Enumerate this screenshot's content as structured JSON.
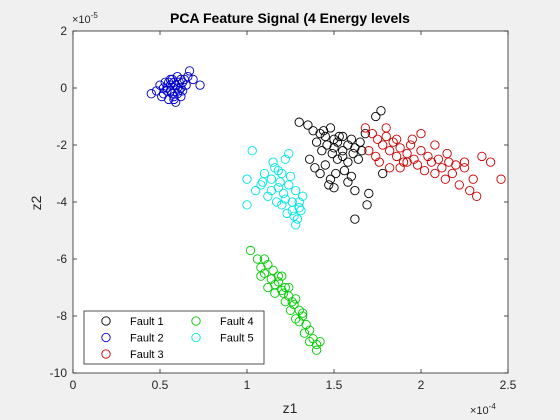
{
  "chart_data": {
    "type": "scatter",
    "title": "PCA Feature Signal (4 Energy levels",
    "xlabel": "z1",
    "ylabel": "z2",
    "x_multiplier": "×10",
    "x_exponent": "-4",
    "y_multiplier": "×10",
    "y_exponent": "-5",
    "xlim": [
      0,
      2.5
    ],
    "ylim": [
      -10,
      2
    ],
    "x_ticks": [
      0,
      0.5,
      1,
      1.5,
      2,
      2.5
    ],
    "x_tick_labels": [
      "0",
      "0.5",
      "1",
      "1.5",
      "2",
      "2.5"
    ],
    "y_ticks": [
      2,
      0,
      -2,
      -4,
      -6,
      -8,
      -10
    ],
    "y_tick_labels": [
      "2",
      "0",
      "-2",
      "-4",
      "-6",
      "-8",
      "-10"
    ],
    "legend_position": "bottom-left",
    "legend_columns": 2,
    "series": [
      {
        "name": "Fault 1",
        "color": "#000000",
        "points": [
          [
            1.3,
            -1.2
          ],
          [
            1.35,
            -1.3
          ],
          [
            1.38,
            -1.5
          ],
          [
            1.42,
            -1.6
          ],
          [
            1.45,
            -1.7
          ],
          [
            1.48,
            -1.4
          ],
          [
            1.5,
            -1.8
          ],
          [
            1.52,
            -1.9
          ],
          [
            1.55,
            -1.7
          ],
          [
            1.58,
            -2.0
          ],
          [
            1.6,
            -1.8
          ],
          [
            1.62,
            -2.1
          ],
          [
            1.65,
            -1.9
          ],
          [
            1.68,
            -1.6
          ],
          [
            1.4,
            -1.9
          ],
          [
            1.43,
            -2.2
          ],
          [
            1.46,
            -2.0
          ],
          [
            1.49,
            -2.3
          ],
          [
            1.52,
            -2.5
          ],
          [
            1.55,
            -2.4
          ],
          [
            1.58,
            -2.6
          ],
          [
            1.61,
            -2.3
          ],
          [
            1.64,
            -2.5
          ],
          [
            1.36,
            -2.5
          ],
          [
            1.39,
            -2.8
          ],
          [
            1.42,
            -3.0
          ],
          [
            1.45,
            -2.7
          ],
          [
            1.48,
            -3.2
          ],
          [
            1.51,
            -3.0
          ],
          [
            1.56,
            -2.9
          ],
          [
            1.6,
            -3.1
          ],
          [
            1.47,
            -3.4
          ],
          [
            1.5,
            -3.5
          ],
          [
            1.58,
            -3.3
          ],
          [
            1.62,
            -3.6
          ],
          [
            1.55,
            -2.2
          ],
          [
            1.5,
            -2.1
          ],
          [
            1.44,
            -1.5
          ],
          [
            1.53,
            -1.7
          ],
          [
            1.66,
            -2.2
          ],
          [
            1.7,
            -3.7
          ],
          [
            1.74,
            -1.0
          ],
          [
            1.77,
            -0.8
          ],
          [
            1.78,
            -3.0
          ],
          [
            1.69,
            -4.1
          ],
          [
            1.62,
            -4.6
          ]
        ]
      },
      {
        "name": "Fault 2",
        "color": "#0000cc",
        "points": [
          [
            0.48,
            -0.1
          ],
          [
            0.5,
            0.1
          ],
          [
            0.52,
            -0.2
          ],
          [
            0.54,
            0.0
          ],
          [
            0.55,
            0.2
          ],
          [
            0.56,
            -0.1
          ],
          [
            0.57,
            0.3
          ],
          [
            0.58,
            -0.3
          ],
          [
            0.59,
            0.1
          ],
          [
            0.6,
            -0.2
          ],
          [
            0.61,
            0.2
          ],
          [
            0.62,
            0.0
          ],
          [
            0.63,
            -0.1
          ],
          [
            0.64,
            0.3
          ],
          [
            0.65,
            0.1
          ],
          [
            0.51,
            -0.3
          ],
          [
            0.53,
            0.2
          ],
          [
            0.55,
            -0.4
          ],
          [
            0.57,
            -0.2
          ],
          [
            0.59,
            -0.5
          ],
          [
            0.6,
            0.4
          ],
          [
            0.62,
            -0.3
          ],
          [
            0.54,
            -0.1
          ],
          [
            0.56,
            0.1
          ],
          [
            0.58,
            0.2
          ],
          [
            0.61,
            -0.1
          ],
          [
            0.63,
            0.2
          ],
          [
            0.66,
            0.4
          ],
          [
            0.67,
            0.6
          ],
          [
            0.69,
            0.3
          ],
          [
            0.73,
            0.1
          ],
          [
            0.45,
            -0.2
          ],
          [
            0.52,
            0.0
          ],
          [
            0.58,
            -0.4
          ],
          [
            0.56,
            0.3
          ],
          [
            0.6,
            0.0
          ],
          [
            0.62,
            0.3
          ]
        ]
      },
      {
        "name": "Fault 3",
        "color": "#cc0000",
        "points": [
          [
            1.68,
            -1.4
          ],
          [
            1.72,
            -1.6
          ],
          [
            1.75,
            -1.8
          ],
          [
            1.78,
            -2.0
          ],
          [
            1.8,
            -1.7
          ],
          [
            1.82,
            -2.2
          ],
          [
            1.84,
            -1.9
          ],
          [
            1.86,
            -2.4
          ],
          [
            1.88,
            -2.1
          ],
          [
            1.9,
            -2.6
          ],
          [
            1.92,
            -2.3
          ],
          [
            1.94,
            -2.0
          ],
          [
            1.96,
            -2.5
          ],
          [
            1.98,
            -2.7
          ],
          [
            2.0,
            -2.2
          ],
          [
            2.02,
            -2.9
          ],
          [
            2.04,
            -2.4
          ],
          [
            2.06,
            -2.6
          ],
          [
            2.08,
            -3.0
          ],
          [
            2.1,
            -2.5
          ],
          [
            2.12,
            -2.8
          ],
          [
            2.14,
            -3.2
          ],
          [
            2.16,
            -2.6
          ],
          [
            2.18,
            -3.0
          ],
          [
            2.2,
            -2.7
          ],
          [
            2.22,
            -3.4
          ],
          [
            2.25,
            -2.8
          ],
          [
            2.28,
            -3.6
          ],
          [
            2.3,
            -3.2
          ],
          [
            2.32,
            -3.8
          ],
          [
            2.35,
            -2.4
          ],
          [
            2.4,
            -2.6
          ],
          [
            2.46,
            -3.2
          ],
          [
            1.76,
            -2.6
          ],
          [
            1.82,
            -2.8
          ],
          [
            1.88,
            -2.8
          ],
          [
            1.95,
            -1.8
          ],
          [
            2.0,
            -1.6
          ],
          [
            2.08,
            -2.0
          ],
          [
            2.15,
            -2.3
          ],
          [
            2.25,
            -2.6
          ],
          [
            1.7,
            -2.2
          ],
          [
            1.74,
            -2.4
          ],
          [
            1.8,
            -1.4
          ],
          [
            1.86,
            -1.8
          ],
          [
            1.92,
            -2.6
          ]
        ]
      },
      {
        "name": "Fault 4",
        "color": "#00cc00",
        "points": [
          [
            1.02,
            -5.7
          ],
          [
            1.06,
            -6.0
          ],
          [
            1.08,
            -6.3
          ],
          [
            1.1,
            -6.5
          ],
          [
            1.12,
            -6.2
          ],
          [
            1.14,
            -6.7
          ],
          [
            1.16,
            -6.9
          ],
          [
            1.18,
            -6.6
          ],
          [
            1.2,
            -7.1
          ],
          [
            1.22,
            -7.0
          ],
          [
            1.24,
            -7.3
          ],
          [
            1.26,
            -7.5
          ],
          [
            1.28,
            -7.4
          ],
          [
            1.3,
            -7.8
          ],
          [
            1.32,
            -8.0
          ],
          [
            1.34,
            -8.3
          ],
          [
            1.36,
            -8.5
          ],
          [
            1.38,
            -8.8
          ],
          [
            1.4,
            -9.0
          ],
          [
            1.42,
            -8.9
          ],
          [
            1.15,
            -6.4
          ],
          [
            1.18,
            -6.8
          ],
          [
            1.21,
            -7.2
          ],
          [
            1.24,
            -7.0
          ],
          [
            1.27,
            -7.6
          ],
          [
            1.3,
            -8.2
          ],
          [
            1.33,
            -8.6
          ],
          [
            1.36,
            -8.9
          ],
          [
            1.1,
            -6.0
          ],
          [
            1.12,
            -7.0
          ],
          [
            1.2,
            -6.6
          ],
          [
            1.25,
            -7.8
          ],
          [
            1.32,
            -7.9
          ],
          [
            1.4,
            -9.2
          ],
          [
            1.08,
            -6.6
          ],
          [
            1.16,
            -7.2
          ],
          [
            1.22,
            -7.5
          ],
          [
            1.28,
            -8.1
          ]
        ]
      },
      {
        "name": "Fault 5",
        "color": "#00e6e6",
        "points": [
          [
            1.0,
            -3.2
          ],
          [
            1.03,
            -2.2
          ],
          [
            1.05,
            -3.6
          ],
          [
            1.08,
            -3.4
          ],
          [
            1.1,
            -3.0
          ],
          [
            1.12,
            -3.8
          ],
          [
            1.14,
            -3.2
          ],
          [
            1.16,
            -2.8
          ],
          [
            1.18,
            -3.5
          ],
          [
            1.2,
            -3.0
          ],
          [
            1.22,
            -3.9
          ],
          [
            1.24,
            -3.4
          ],
          [
            1.26,
            -4.0
          ],
          [
            1.28,
            -3.6
          ],
          [
            1.3,
            -4.2
          ],
          [
            1.32,
            -3.8
          ],
          [
            1.15,
            -2.6
          ],
          [
            1.18,
            -2.9
          ],
          [
            1.22,
            -2.5
          ],
          [
            1.25,
            -3.1
          ],
          [
            1.2,
            -4.1
          ],
          [
            1.23,
            -4.4
          ],
          [
            1.26,
            -4.3
          ],
          [
            1.29,
            -4.6
          ],
          [
            1.3,
            -4.0
          ],
          [
            1.14,
            -3.6
          ],
          [
            1.17,
            -4.0
          ],
          [
            1.27,
            -4.5
          ],
          [
            1.21,
            -3.7
          ],
          [
            1.09,
            -3.3
          ],
          [
            1.0,
            -4.1
          ],
          [
            1.24,
            -2.3
          ],
          [
            1.28,
            -4.8
          ],
          [
            1.31,
            -4.3
          ],
          [
            1.19,
            -3.3
          ]
        ]
      }
    ]
  }
}
